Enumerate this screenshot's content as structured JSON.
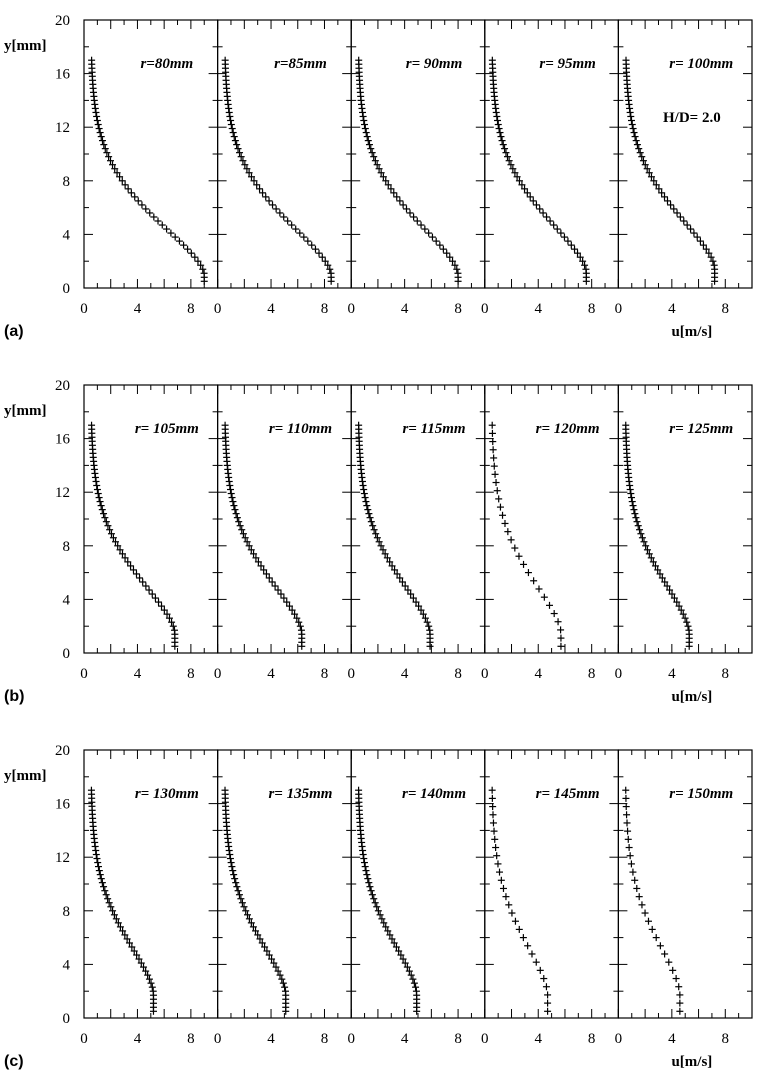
{
  "chart_data": {
    "type": "scatter",
    "marker": "plus",
    "ylabel": "y[mm]",
    "xlabel": "u[m/s]",
    "xlim": [
      0,
      10
    ],
    "ylim": [
      0,
      20
    ],
    "y_ticks": [
      "0",
      "4",
      "8",
      "12",
      "16",
      "20"
    ],
    "x_ticks": [
      "0",
      "4",
      "8"
    ],
    "grid": false,
    "rows": [
      {
        "label": "(a)",
        "note": "H/D= 2.0",
        "panels": [
          {
            "title": "r=80mm",
            "umax": 9.0,
            "ypk": 1.0,
            "a": 0.2,
            "b": 0.4,
            "u_inf": 0.5,
            "n": 56,
            "ystart": 0.5
          },
          {
            "title": "r=85mm",
            "umax": 8.5,
            "ypk": 1.0,
            "a": 0.2,
            "b": 0.4,
            "u_inf": 0.5,
            "n": 56,
            "ystart": 0.5
          },
          {
            "title": "r= 90mm",
            "umax": 8.0,
            "ypk": 1.0,
            "a": 0.2,
            "b": 0.4,
            "u_inf": 0.5,
            "n": 56,
            "ystart": 0.5
          },
          {
            "title": "r= 95mm",
            "umax": 7.6,
            "ypk": 1.2,
            "a": 0.2,
            "b": 0.4,
            "u_inf": 0.5,
            "n": 56,
            "ystart": 0.5
          },
          {
            "title": "r= 100mm",
            "umax": 7.2,
            "ypk": 1.5,
            "a": 0.2,
            "b": 0.4,
            "u_inf": 0.5,
            "n": 56,
            "ystart": 0.5
          }
        ]
      },
      {
        "label": "(b)",
        "panels": [
          {
            "title": "r= 105mm",
            "umax": 6.8,
            "ypk": 1.5,
            "a": 0.2,
            "b": 0.4,
            "u_inf": 0.5,
            "n": 56,
            "ystart": 0.5
          },
          {
            "title": "r= 110mm",
            "umax": 6.3,
            "ypk": 1.5,
            "a": 0.2,
            "b": 0.4,
            "u_inf": 0.5,
            "n": 56,
            "ystart": 0.5
          },
          {
            "title": "r= 115mm",
            "umax": 5.9,
            "ypk": 1.5,
            "a": 0.2,
            "b": 0.4,
            "u_inf": 0.5,
            "n": 56,
            "ystart": 0.5
          },
          {
            "title": "r= 120mm",
            "umax": 5.7,
            "ypk": 1.5,
            "a": 0.2,
            "b": 0.4,
            "u_inf": 0.5,
            "n": 28,
            "ystart": 0.5
          },
          {
            "title": "r= 125mm",
            "umax": 5.3,
            "ypk": 1.5,
            "a": 0.2,
            "b": 0.4,
            "u_inf": 0.5,
            "n": 56,
            "ystart": 0.5
          }
        ]
      },
      {
        "label": "(c)",
        "panels": [
          {
            "title": "r= 130mm",
            "umax": 5.2,
            "ypk": 1.8,
            "a": 0.2,
            "b": 0.4,
            "u_inf": 0.5,
            "n": 56,
            "ystart": 0.5
          },
          {
            "title": "r= 135mm",
            "umax": 5.1,
            "ypk": 1.8,
            "a": 0.2,
            "b": 0.4,
            "u_inf": 0.5,
            "n": 56,
            "ystart": 0.5
          },
          {
            "title": "r= 140mm",
            "umax": 4.9,
            "ypk": 1.8,
            "a": 0.2,
            "b": 0.4,
            "u_inf": 0.5,
            "n": 56,
            "ystart": 0.5
          },
          {
            "title": "r= 145mm",
            "umax": 4.7,
            "ypk": 1.8,
            "a": 0.2,
            "b": 0.4,
            "u_inf": 0.5,
            "n": 28,
            "ystart": 0.5
          },
          {
            "title": "r= 150mm",
            "umax": 4.6,
            "ypk": 1.8,
            "a": 0.2,
            "b": 0.4,
            "u_inf": 0.5,
            "n": 28,
            "ystart": 0.5
          }
        ]
      }
    ]
  }
}
